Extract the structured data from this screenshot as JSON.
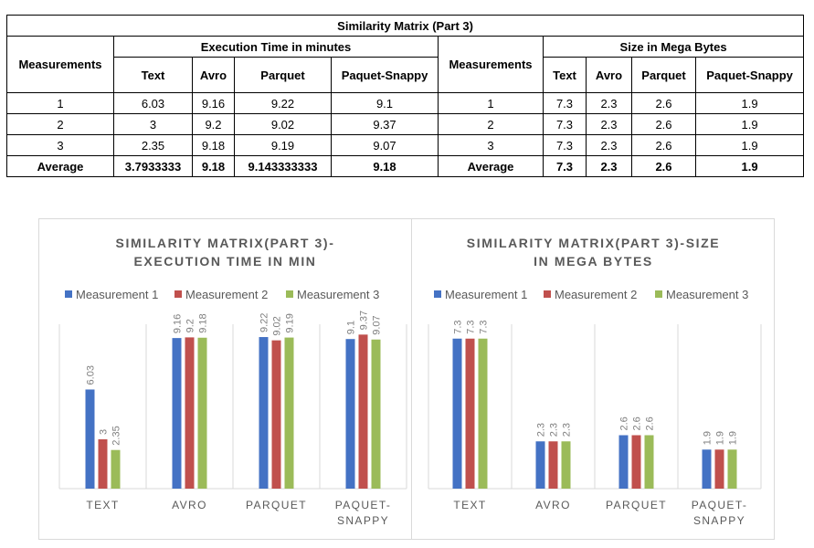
{
  "table": {
    "title": "Similarity Matrix (Part 3)",
    "exec_group": "Execution Time in minutes",
    "size_group": "Size in Mega Bytes",
    "measurements_header": "Measurements",
    "columns": [
      "Text",
      "Avro",
      "Parquet",
      "Paquet-Snappy"
    ],
    "rows": [
      {
        "label": "1",
        "exec": [
          "6.03",
          "9.16",
          "9.22",
          "9.1"
        ],
        "size": [
          "7.3",
          "2.3",
          "2.6",
          "1.9"
        ]
      },
      {
        "label": "2",
        "exec": [
          "3",
          "9.2",
          "9.02",
          "9.37"
        ],
        "size": [
          "7.3",
          "2.3",
          "2.6",
          "1.9"
        ]
      },
      {
        "label": "3",
        "exec": [
          "2.35",
          "9.18",
          "9.19",
          "9.07"
        ],
        "size": [
          "7.3",
          "2.3",
          "2.6",
          "1.9"
        ]
      },
      {
        "label": "Average",
        "exec": [
          "3.7933333",
          "9.18",
          "9.143333333",
          "9.18"
        ],
        "size": [
          "7.3",
          "2.3",
          "2.6",
          "1.9"
        ]
      }
    ]
  },
  "colors": {
    "series": [
      "#4472c4",
      "#c0504d",
      "#9bbb59"
    ],
    "label": "#7f7f7f",
    "title": "#595959",
    "grid": "#d9d9d9"
  },
  "chart_data": [
    {
      "type": "bar",
      "title": "SIMILARITY MATRIX(PART 3)-EXECUTION TIME IN MIN",
      "title_lines": [
        "SIMILARITY MATRIX(PART 3)-",
        "EXECUTION TIME IN MIN"
      ],
      "categories": [
        "TEXT",
        "AVRO",
        "PARQUET",
        "PAQUET-SNAPPY"
      ],
      "category_lines": [
        [
          "TEXT"
        ],
        [
          "AVRO"
        ],
        [
          "PARQUET"
        ],
        [
          "PAQUET-",
          "SNAPPY"
        ]
      ],
      "series": [
        {
          "name": "Measurement 1",
          "values": [
            6.03,
            9.16,
            9.22,
            9.1
          ],
          "labels": [
            "6.03",
            "9.16",
            "9.22",
            "9.1"
          ]
        },
        {
          "name": "Measurement 2",
          "values": [
            3,
            9.2,
            9.02,
            9.37
          ],
          "labels": [
            "3",
            "9.2",
            "9.02",
            "9.37"
          ]
        },
        {
          "name": "Measurement 3",
          "values": [
            2.35,
            9.18,
            9.19,
            9.07
          ],
          "labels": [
            "2.35",
            "9.18",
            "9.19",
            "9.07"
          ]
        }
      ],
      "ylim": [
        0,
        10
      ],
      "legend": "top",
      "grid": false
    },
    {
      "type": "bar",
      "title": "SIMILARITY MATRIX(PART 3)-SIZE IN MEGA BYTES",
      "title_lines": [
        "SIMILARITY MATRIX(PART 3)-SIZE",
        "IN MEGA BYTES"
      ],
      "categories": [
        "TEXT",
        "AVRO",
        "PARQUET",
        "PAQUET-SNAPPY"
      ],
      "category_lines": [
        [
          "TEXT"
        ],
        [
          "AVRO"
        ],
        [
          "PARQUET"
        ],
        [
          "PAQUET-",
          "SNAPPY"
        ]
      ],
      "series": [
        {
          "name": "Measurement 1",
          "values": [
            7.3,
            2.3,
            2.6,
            1.9
          ],
          "labels": [
            "7.3",
            "2.3",
            "2.6",
            "1.9"
          ]
        },
        {
          "name": "Measurement 2",
          "values": [
            7.3,
            2.3,
            2.6,
            1.9
          ],
          "labels": [
            "7.3",
            "2.3",
            "2.6",
            "1.9"
          ]
        },
        {
          "name": "Measurement 3",
          "values": [
            7.3,
            2.3,
            2.6,
            1.9
          ],
          "labels": [
            "7.3",
            "2.3",
            "2.6",
            "1.9"
          ]
        }
      ],
      "ylim": [
        0,
        8
      ],
      "legend": "top",
      "grid": false
    }
  ]
}
